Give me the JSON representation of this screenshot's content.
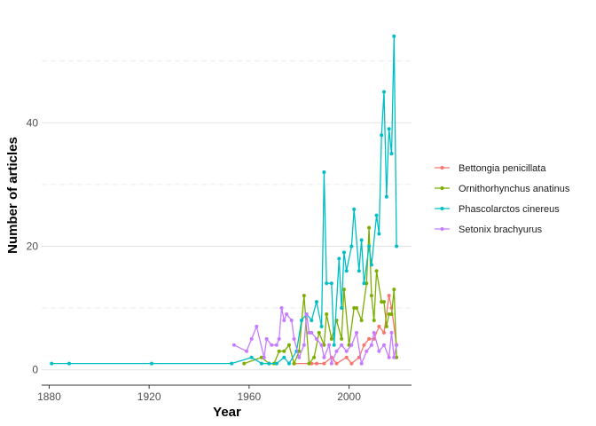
{
  "chart_data": {
    "type": "line",
    "xlabel": "Year",
    "ylabel": "Number of articles",
    "xlim": [
      1877,
      2025
    ],
    "ylim": [
      -2.5,
      57
    ],
    "x_ticks": [
      1880,
      1920,
      1960,
      2000
    ],
    "y_ticks": [
      0,
      20,
      40
    ],
    "y_minor_gridlines": [
      10,
      30,
      50
    ],
    "grid": true,
    "legend_position": "right",
    "series": [
      {
        "name": "Bettongia penicillata",
        "color": "#F8766D",
        "x": [
          1978,
          1985,
          1987,
          1990,
          1993,
          1995,
          1999,
          2001,
          2004,
          2006,
          2008,
          2010,
          2012,
          2014,
          2016,
          2017,
          2019
        ],
        "y": [
          1,
          1,
          1,
          1,
          2,
          1,
          2,
          1,
          2,
          4,
          5,
          5,
          7,
          6,
          12,
          10,
          4
        ]
      },
      {
        "name": "Ornithorhynchus anatinus",
        "color": "#7CAE00",
        "x": [
          1958,
          1965,
          1968,
          1970,
          1972,
          1974,
          1976,
          1978,
          1980,
          1982,
          1984,
          1986,
          1988,
          1990,
          1991,
          1993,
          1995,
          1997,
          1998,
          2000,
          2002,
          2003,
          2005,
          2007,
          2008,
          2009,
          2010,
          2011,
          2013,
          2014,
          2015,
          2016,
          2017,
          2018,
          2019
        ],
        "y": [
          1,
          2,
          1,
          1,
          3,
          3,
          4,
          1,
          3,
          12,
          1,
          2,
          6,
          4,
          9,
          5,
          8,
          5,
          13,
          4,
          10,
          10,
          8,
          14,
          23,
          12,
          8,
          16,
          11,
          11,
          7,
          9,
          9,
          13,
          2
        ]
      },
      {
        "name": "Phascolarctos cinereus",
        "color": "#00BFC4",
        "x": [
          1881,
          1888,
          1921,
          1953,
          1961,
          1965,
          1968,
          1971,
          1974,
          1976,
          1979,
          1981,
          1983,
          1985,
          1987,
          1989,
          1990,
          1991,
          1993,
          1994,
          1996,
          1997,
          1998,
          1999,
          2001,
          2002,
          2004,
          2005,
          2006,
          2008,
          2009,
          2011,
          2012,
          2013,
          2014,
          2015,
          2016,
          2017,
          2018,
          2019
        ],
        "y": [
          1,
          1,
          1,
          1,
          2,
          1,
          1,
          1,
          2,
          1,
          3,
          8,
          9,
          8,
          11,
          7,
          32,
          14,
          14,
          4,
          18,
          10,
          19,
          16,
          20,
          26,
          16,
          21,
          14,
          20,
          17,
          25,
          22,
          38,
          45,
          28,
          39,
          35,
          54,
          20
        ]
      },
      {
        "name": "Setonix brachyurus",
        "color": "#C77CFF",
        "x": [
          1954,
          1959,
          1961,
          1963,
          1966,
          1967,
          1969,
          1971,
          1972,
          1973,
          1974,
          1975,
          1977,
          1978,
          1980,
          1982,
          1983,
          1984,
          1985,
          1987,
          1989,
          1990,
          1992,
          1993,
          1995,
          1997,
          1999,
          2001,
          2003,
          2005,
          2007,
          2009,
          2010,
          2012,
          2014,
          2016,
          2017,
          2018,
          2019
        ],
        "y": [
          4,
          3,
          5,
          7,
          2,
          5,
          4,
          4,
          5,
          10,
          8,
          9,
          8,
          5,
          2,
          4,
          9,
          6,
          6,
          5,
          4,
          2,
          4,
          1,
          3,
          4,
          3,
          4,
          6,
          1,
          3,
          4,
          6,
          3,
          4,
          2,
          6,
          2,
          4
        ]
      }
    ]
  }
}
